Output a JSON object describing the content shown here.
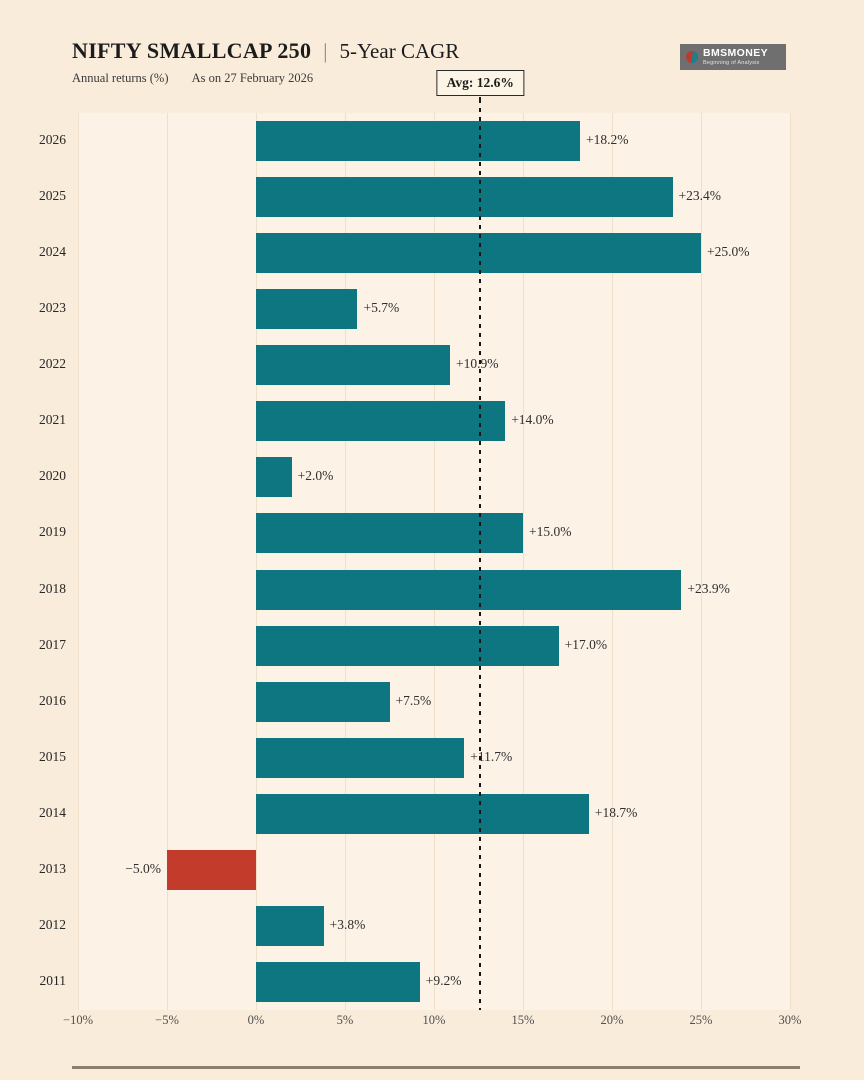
{
  "colors": {
    "page_bg": "#f9ecdb",
    "plot_bg": "#fcf2e6",
    "gridline": "#f0dfca",
    "positive_bar": "#0e7680",
    "negative_bar": "#c33b2b",
    "logo_bg": "#6f6f6f",
    "divider": "#8b8173"
  },
  "header": {
    "title_main": "NIFTY SMALLCAP 250",
    "title_separator": "|",
    "title_secondary": "5-Year CAGR",
    "subtitle_metric": "Annual returns (%)",
    "subtitle_date": "As on 27 February 2026",
    "logo_text": "BMSMONEY",
    "logo_tagline": "Beginning of Analysis"
  },
  "average": {
    "label": "Avg: 12.6%",
    "value": 12.6
  },
  "chart_data": {
    "type": "bar",
    "orientation": "horizontal",
    "title": "NIFTY SMALLCAP 250 | 5-Year CAGR",
    "subtitle": "Annual returns (%) — As on 27 February 2026",
    "categories": [
      "2026",
      "2025",
      "2024",
      "2023",
      "2022",
      "2021",
      "2020",
      "2019",
      "2018",
      "2017",
      "2016",
      "2015",
      "2014",
      "2013",
      "2012",
      "2011"
    ],
    "values": [
      18.2,
      23.4,
      25.0,
      5.7,
      10.9,
      14.0,
      2.0,
      15.0,
      23.9,
      17.0,
      7.5,
      11.7,
      18.7,
      -5.0,
      3.8,
      9.2
    ],
    "value_labels": [
      "+18.2%",
      "+23.4%",
      "+25.0%",
      "+5.7%",
      "+10.9%",
      "+14.0%",
      "+2.0%",
      "+15.0%",
      "+23.9%",
      "+17.0%",
      "+7.5%",
      "+11.7%",
      "+18.7%",
      "−5.0%",
      "+3.8%",
      "+9.2%"
    ],
    "average": 12.6,
    "xlabel": "",
    "ylabel": "",
    "xlim": [
      -10,
      30
    ],
    "xticks": [
      {
        "value": -10,
        "label": "−10%"
      },
      {
        "value": -5,
        "label": "−5%"
      },
      {
        "value": 0,
        "label": "0%"
      },
      {
        "value": 5,
        "label": "5%"
      },
      {
        "value": 10,
        "label": "10%"
      },
      {
        "value": 15,
        "label": "15%"
      },
      {
        "value": 20,
        "label": "20%"
      },
      {
        "value": 25,
        "label": "25%"
      },
      {
        "value": 30,
        "label": "30%"
      }
    ],
    "grid": true,
    "legend": false
  }
}
